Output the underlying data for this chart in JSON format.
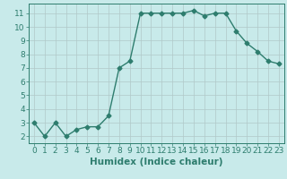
{
  "x": [
    0,
    1,
    2,
    3,
    4,
    5,
    6,
    7,
    8,
    9,
    10,
    11,
    12,
    13,
    14,
    15,
    16,
    17,
    18,
    19,
    20,
    21,
    22,
    23
  ],
  "y": [
    3,
    2,
    3,
    2,
    2.5,
    2.7,
    2.7,
    3.5,
    7,
    7.5,
    11,
    11,
    11,
    11,
    11,
    11.2,
    10.8,
    11,
    11,
    9.7,
    8.8,
    8.2,
    7.5,
    7.3
  ],
  "line_color": "#2e7d6e",
  "marker": "D",
  "markersize": 2.5,
  "linewidth": 1.0,
  "background_color": "#c8eaea",
  "grid_color": "#b0c8c8",
  "xlabel": "Humidex (Indice chaleur)",
  "xlabel_fontsize": 7.5,
  "ylabel_ticks": [
    2,
    3,
    4,
    5,
    6,
    7,
    8,
    9,
    10,
    11
  ],
  "xlim": [
    -0.5,
    23.5
  ],
  "ylim": [
    1.5,
    11.7
  ],
  "xticks": [
    0,
    1,
    2,
    3,
    4,
    5,
    6,
    7,
    8,
    9,
    10,
    11,
    12,
    13,
    14,
    15,
    16,
    17,
    18,
    19,
    20,
    21,
    22,
    23
  ],
  "tick_fontsize": 6.5
}
